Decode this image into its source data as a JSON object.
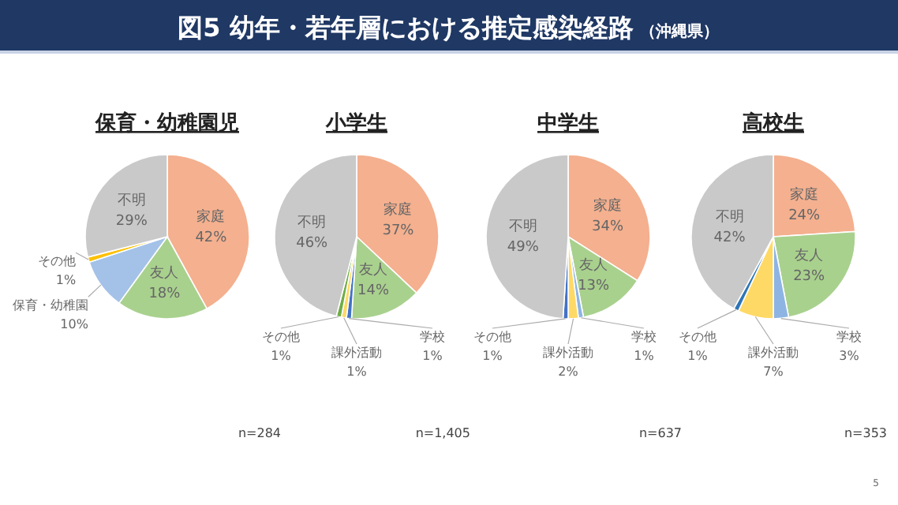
{
  "chart_data": [
    {
      "type": "other",
      "title": "図5 幼年・若年層における推定感染経路",
      "subtitle": "（沖縄県）",
      "annotations": [
        "5"
      ]
    },
    {
      "type": "pie",
      "title": "保育・幼稚園児",
      "categories": [
        "家庭",
        "友人",
        "保育・幼稚園",
        "その他",
        "不明"
      ],
      "values": [
        42,
        18,
        10,
        1,
        29
      ],
      "colors": [
        "#f4b08f",
        "#a9d18e",
        "#a4c2e8",
        "#ffc000",
        "#c9c9c9"
      ],
      "value_labels": [
        "42%",
        "18%",
        "10%",
        "1%",
        "29%"
      ],
      "annotations": [
        "n=284"
      ]
    },
    {
      "type": "pie",
      "title": "小学生",
      "categories": [
        "家庭",
        "友人",
        "学校",
        "課外活動",
        "その他",
        "不明"
      ],
      "values": [
        37,
        14,
        1,
        1,
        1,
        46
      ],
      "colors": [
        "#f4b08f",
        "#a9d18e",
        "#4472c4",
        "#ffd966",
        "#70ad47",
        "#c9c9c9"
      ],
      "value_labels": [
        "37%",
        "14%",
        "1%",
        "1%",
        "1%",
        "46%"
      ],
      "annotations": [
        "n=1,405"
      ]
    },
    {
      "type": "pie",
      "title": "中学生",
      "categories": [
        "家庭",
        "友人",
        "学校",
        "課外活動",
        "その他",
        "不明"
      ],
      "values": [
        34,
        13,
        1,
        2,
        1,
        49
      ],
      "colors": [
        "#f4b08f",
        "#a9d18e",
        "#8eb4e3",
        "#ffd966",
        "#4472c4",
        "#c9c9c9"
      ],
      "value_labels": [
        "34%",
        "13%",
        "1%",
        "2%",
        "1%",
        "49%"
      ],
      "annotations": [
        "n=637"
      ]
    },
    {
      "type": "pie",
      "title": "高校生",
      "categories": [
        "家庭",
        "友人",
        "学校",
        "課外活動",
        "その他",
        "不明"
      ],
      "values": [
        24,
        23,
        3,
        7,
        1,
        42
      ],
      "colors": [
        "#f4b08f",
        "#a9d18e",
        "#8eb4e3",
        "#ffd966",
        "#2e75b6",
        "#c9c9c9"
      ],
      "value_labels": [
        "24%",
        "23%",
        "3%",
        "7%",
        "1%",
        "42%"
      ],
      "annotations": [
        "n=353"
      ]
    }
  ]
}
